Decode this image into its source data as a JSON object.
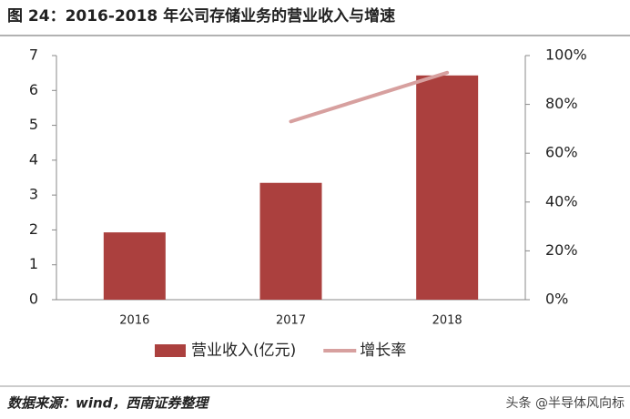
{
  "chart_data": {
    "type": "bar",
    "title": "图 24：2016-2018 年公司存储业务的营业收入与增速",
    "categories": [
      "2016",
      "2017",
      "2018"
    ],
    "series": [
      {
        "name": "营业收入(亿元)",
        "type": "bar",
        "color": "#ab403e",
        "values": [
          1.93,
          3.35,
          6.43
        ]
      },
      {
        "name": "增长率",
        "type": "line",
        "axis": "y2",
        "color": "#d7a09f",
        "values": [
          null,
          73,
          93
        ]
      }
    ],
    "ylim": [
      0,
      7
    ],
    "yticks": [
      0,
      1,
      2,
      3,
      4,
      5,
      6,
      7
    ],
    "y2lim": [
      0,
      100
    ],
    "y2ticks": [
      {
        "value": 0,
        "label": "0%"
      },
      {
        "value": 20,
        "label": "20%"
      },
      {
        "value": 40,
        "label": "40%"
      },
      {
        "value": 60,
        "label": "60%"
      },
      {
        "value": 80,
        "label": "80%"
      },
      {
        "value": 100,
        "label": "100%"
      }
    ],
    "grid": false,
    "legend": "bottom",
    "source": "数据来源：wind，西南证券整理",
    "watermark": "头条 @半导体风向标"
  }
}
